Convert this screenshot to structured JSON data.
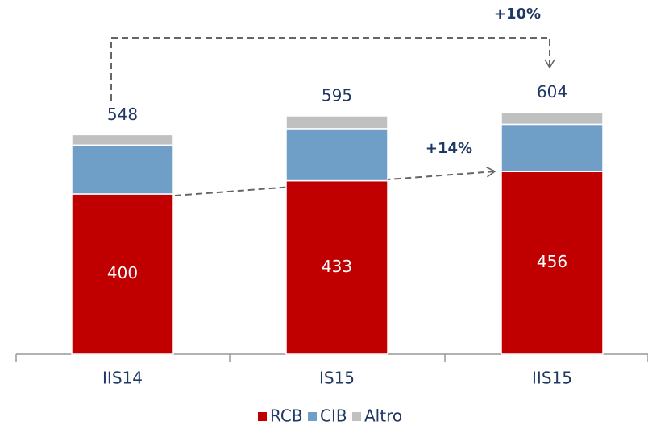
{
  "chart_data": {
    "type": "stacked_bar",
    "categories": [
      "IIS14",
      "IS15",
      "IIS15"
    ],
    "series": [
      {
        "name": "RCB",
        "color": "#c00000",
        "values": [
          400,
          433,
          456
        ]
      },
      {
        "name": "CIB",
        "color": "#6f9ec6",
        "values": [
          122,
          130,
          118
        ]
      },
      {
        "name": "Altro",
        "color": "#c0c0c0",
        "values": [
          26,
          32,
          30
        ]
      }
    ],
    "value_labels_series": 0,
    "totals": [
      548,
      595,
      604
    ],
    "annotations": [
      "+10%",
      "+14%"
    ]
  }
}
